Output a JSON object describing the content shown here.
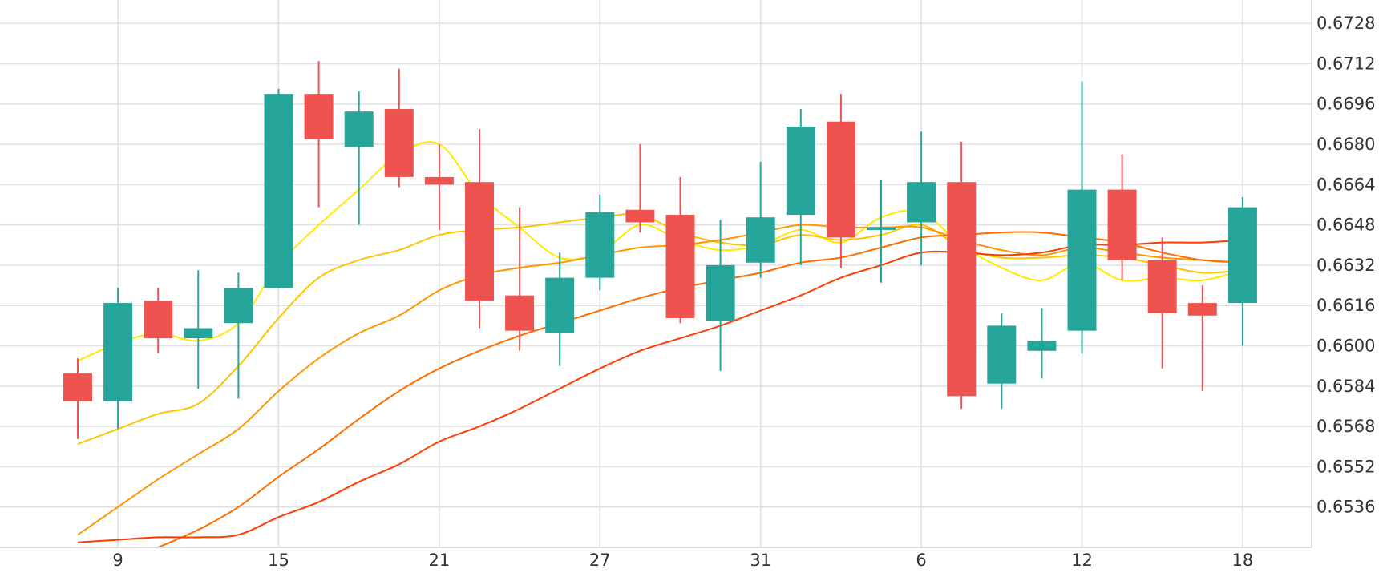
{
  "chart_data": {
    "type": "candlestick",
    "title": "",
    "xlabel": "",
    "ylabel": "",
    "ylim": [
      0.652,
      0.6736
    ],
    "y_ticks": [
      "0.6728",
      "0.6712",
      "0.6696",
      "0.6680",
      "0.6664",
      "0.6648",
      "0.6632",
      "0.6616",
      "0.6600",
      "0.6584",
      "0.6568",
      "0.6552",
      "0.6536"
    ],
    "x_ticks": [
      {
        "label": "9",
        "index": 1
      },
      {
        "label": "15",
        "index": 5
      },
      {
        "label": "21",
        "index": 9
      },
      {
        "label": "27",
        "index": 13
      },
      {
        "label": "31",
        "index": 17
      },
      {
        "label": "6",
        "index": 21
      },
      {
        "label": "12",
        "index": 25
      },
      {
        "label": "18",
        "index": 29
      }
    ],
    "grid": true,
    "colors": {
      "up": "#26a69a",
      "down": "#ef5350",
      "grid": "#e0e0e0",
      "axis": "#d0d0d0"
    },
    "candles": [
      {
        "o": 0.6589,
        "h": 0.6595,
        "l": 0.6563,
        "c": 0.6578
      },
      {
        "o": 0.6578,
        "h": 0.6623,
        "l": 0.6567,
        "c": 0.6617
      },
      {
        "o": 0.6618,
        "h": 0.6623,
        "l": 0.6597,
        "c": 0.6603
      },
      {
        "o": 0.6603,
        "h": 0.663,
        "l": 0.6583,
        "c": 0.6607
      },
      {
        "o": 0.6609,
        "h": 0.6629,
        "l": 0.6579,
        "c": 0.6623
      },
      {
        "o": 0.6623,
        "h": 0.6702,
        "l": 0.6623,
        "c": 0.67
      },
      {
        "o": 0.67,
        "h": 0.6713,
        "l": 0.6655,
        "c": 0.6682
      },
      {
        "o": 0.6679,
        "h": 0.6701,
        "l": 0.6648,
        "c": 0.6693
      },
      {
        "o": 0.6694,
        "h": 0.671,
        "l": 0.6663,
        "c": 0.6667
      },
      {
        "o": 0.6667,
        "h": 0.668,
        "l": 0.6646,
        "c": 0.6664
      },
      {
        "o": 0.6665,
        "h": 0.6686,
        "l": 0.6607,
        "c": 0.6618
      },
      {
        "o": 0.662,
        "h": 0.6655,
        "l": 0.6598,
        "c": 0.6606
      },
      {
        "o": 0.6605,
        "h": 0.6637,
        "l": 0.6592,
        "c": 0.6627
      },
      {
        "o": 0.6627,
        "h": 0.666,
        "l": 0.6622,
        "c": 0.6653
      },
      {
        "o": 0.6654,
        "h": 0.668,
        "l": 0.6645,
        "c": 0.6649
      },
      {
        "o": 0.6652,
        "h": 0.6667,
        "l": 0.6609,
        "c": 0.6611
      },
      {
        "o": 0.661,
        "h": 0.665,
        "l": 0.659,
        "c": 0.6632
      },
      {
        "o": 0.6633,
        "h": 0.6673,
        "l": 0.6627,
        "c": 0.6651
      },
      {
        "o": 0.6652,
        "h": 0.6694,
        "l": 0.6632,
        "c": 0.6687
      },
      {
        "o": 0.6689,
        "h": 0.67,
        "l": 0.6631,
        "c": 0.6643
      },
      {
        "o": 0.6646,
        "h": 0.6666,
        "l": 0.6625,
        "c": 0.6647
      },
      {
        "o": 0.6649,
        "h": 0.6685,
        "l": 0.6632,
        "c": 0.6665
      },
      {
        "o": 0.6665,
        "h": 0.6681,
        "l": 0.6575,
        "c": 0.658
      },
      {
        "o": 0.6585,
        "h": 0.6613,
        "l": 0.6575,
        "c": 0.6608
      },
      {
        "o": 0.6598,
        "h": 0.6615,
        "l": 0.6587,
        "c": 0.6602
      },
      {
        "o": 0.6606,
        "h": 0.6705,
        "l": 0.6597,
        "c": 0.6662
      },
      {
        "o": 0.6662,
        "h": 0.6676,
        "l": 0.6626,
        "c": 0.6634
      },
      {
        "o": 0.6634,
        "h": 0.6643,
        "l": 0.6591,
        "c": 0.6613
      },
      {
        "o": 0.6617,
        "h": 0.6624,
        "l": 0.6582,
        "c": 0.6612
      },
      {
        "o": 0.6617,
        "h": 0.6659,
        "l": 0.66,
        "c": 0.6655
      }
    ],
    "series": [
      {
        "color": "#ffea00",
        "values": [
          0.6594,
          0.6601,
          0.6605,
          0.6602,
          0.6609,
          0.6632,
          0.6648,
          0.6662,
          0.6676,
          0.668,
          0.666,
          0.6647,
          0.6635,
          0.6637,
          0.6648,
          0.6642,
          0.6638,
          0.664,
          0.6646,
          0.6641,
          0.6651,
          0.6653,
          0.664,
          0.6631,
          0.6626,
          0.6633,
          0.6626,
          0.6627,
          0.6626,
          0.663
        ]
      },
      {
        "color": "#ffc400",
        "values": [
          0.6561,
          0.6567,
          0.6573,
          0.6577,
          0.6592,
          0.6611,
          0.6627,
          0.6634,
          0.6638,
          0.6644,
          0.6646,
          0.6647,
          0.6649,
          0.6651,
          0.6652,
          0.6645,
          0.6641,
          0.664,
          0.6644,
          0.6642,
          0.6644,
          0.6648,
          0.6639,
          0.6635,
          0.6635,
          0.6636,
          0.6635,
          0.6632,
          0.6629,
          0.663
        ]
      },
      {
        "color": "#ff9800",
        "values": [
          0.6525,
          0.6536,
          0.6547,
          0.6557,
          0.6567,
          0.6582,
          0.6595,
          0.6605,
          0.6612,
          0.6622,
          0.6628,
          0.6631,
          0.6633,
          0.6636,
          0.6639,
          0.664,
          0.6642,
          0.6645,
          0.6648,
          0.6647,
          0.6647,
          0.6647,
          0.6642,
          0.6638,
          0.6636,
          0.6639,
          0.6637,
          0.6635,
          0.6634,
          0.6633
        ]
      },
      {
        "color": "#ff6d00",
        "values": [
          null,
          null,
          0.652,
          0.6527,
          0.6536,
          0.6548,
          0.6559,
          0.6571,
          0.6582,
          0.6591,
          0.6598,
          0.6604,
          0.6609,
          0.6614,
          0.6619,
          0.6623,
          0.6626,
          0.6629,
          0.6633,
          0.6635,
          0.6639,
          0.6643,
          0.6644,
          0.6645,
          0.6645,
          0.6643,
          0.6641,
          0.6637,
          0.6634,
          0.6633
        ]
      },
      {
        "color": "#ff3d00",
        "values": [
          0.6522,
          0.6523,
          0.6524,
          0.6524,
          0.6525,
          0.6532,
          0.6538,
          0.6546,
          0.6553,
          0.6562,
          0.6568,
          0.6575,
          0.6583,
          0.6591,
          0.6598,
          0.6603,
          0.6608,
          0.6614,
          0.662,
          0.6627,
          0.6632,
          0.6637,
          0.6637,
          0.6636,
          0.6637,
          0.664,
          0.664,
          0.6641,
          0.6641,
          0.6642
        ]
      }
    ]
  }
}
